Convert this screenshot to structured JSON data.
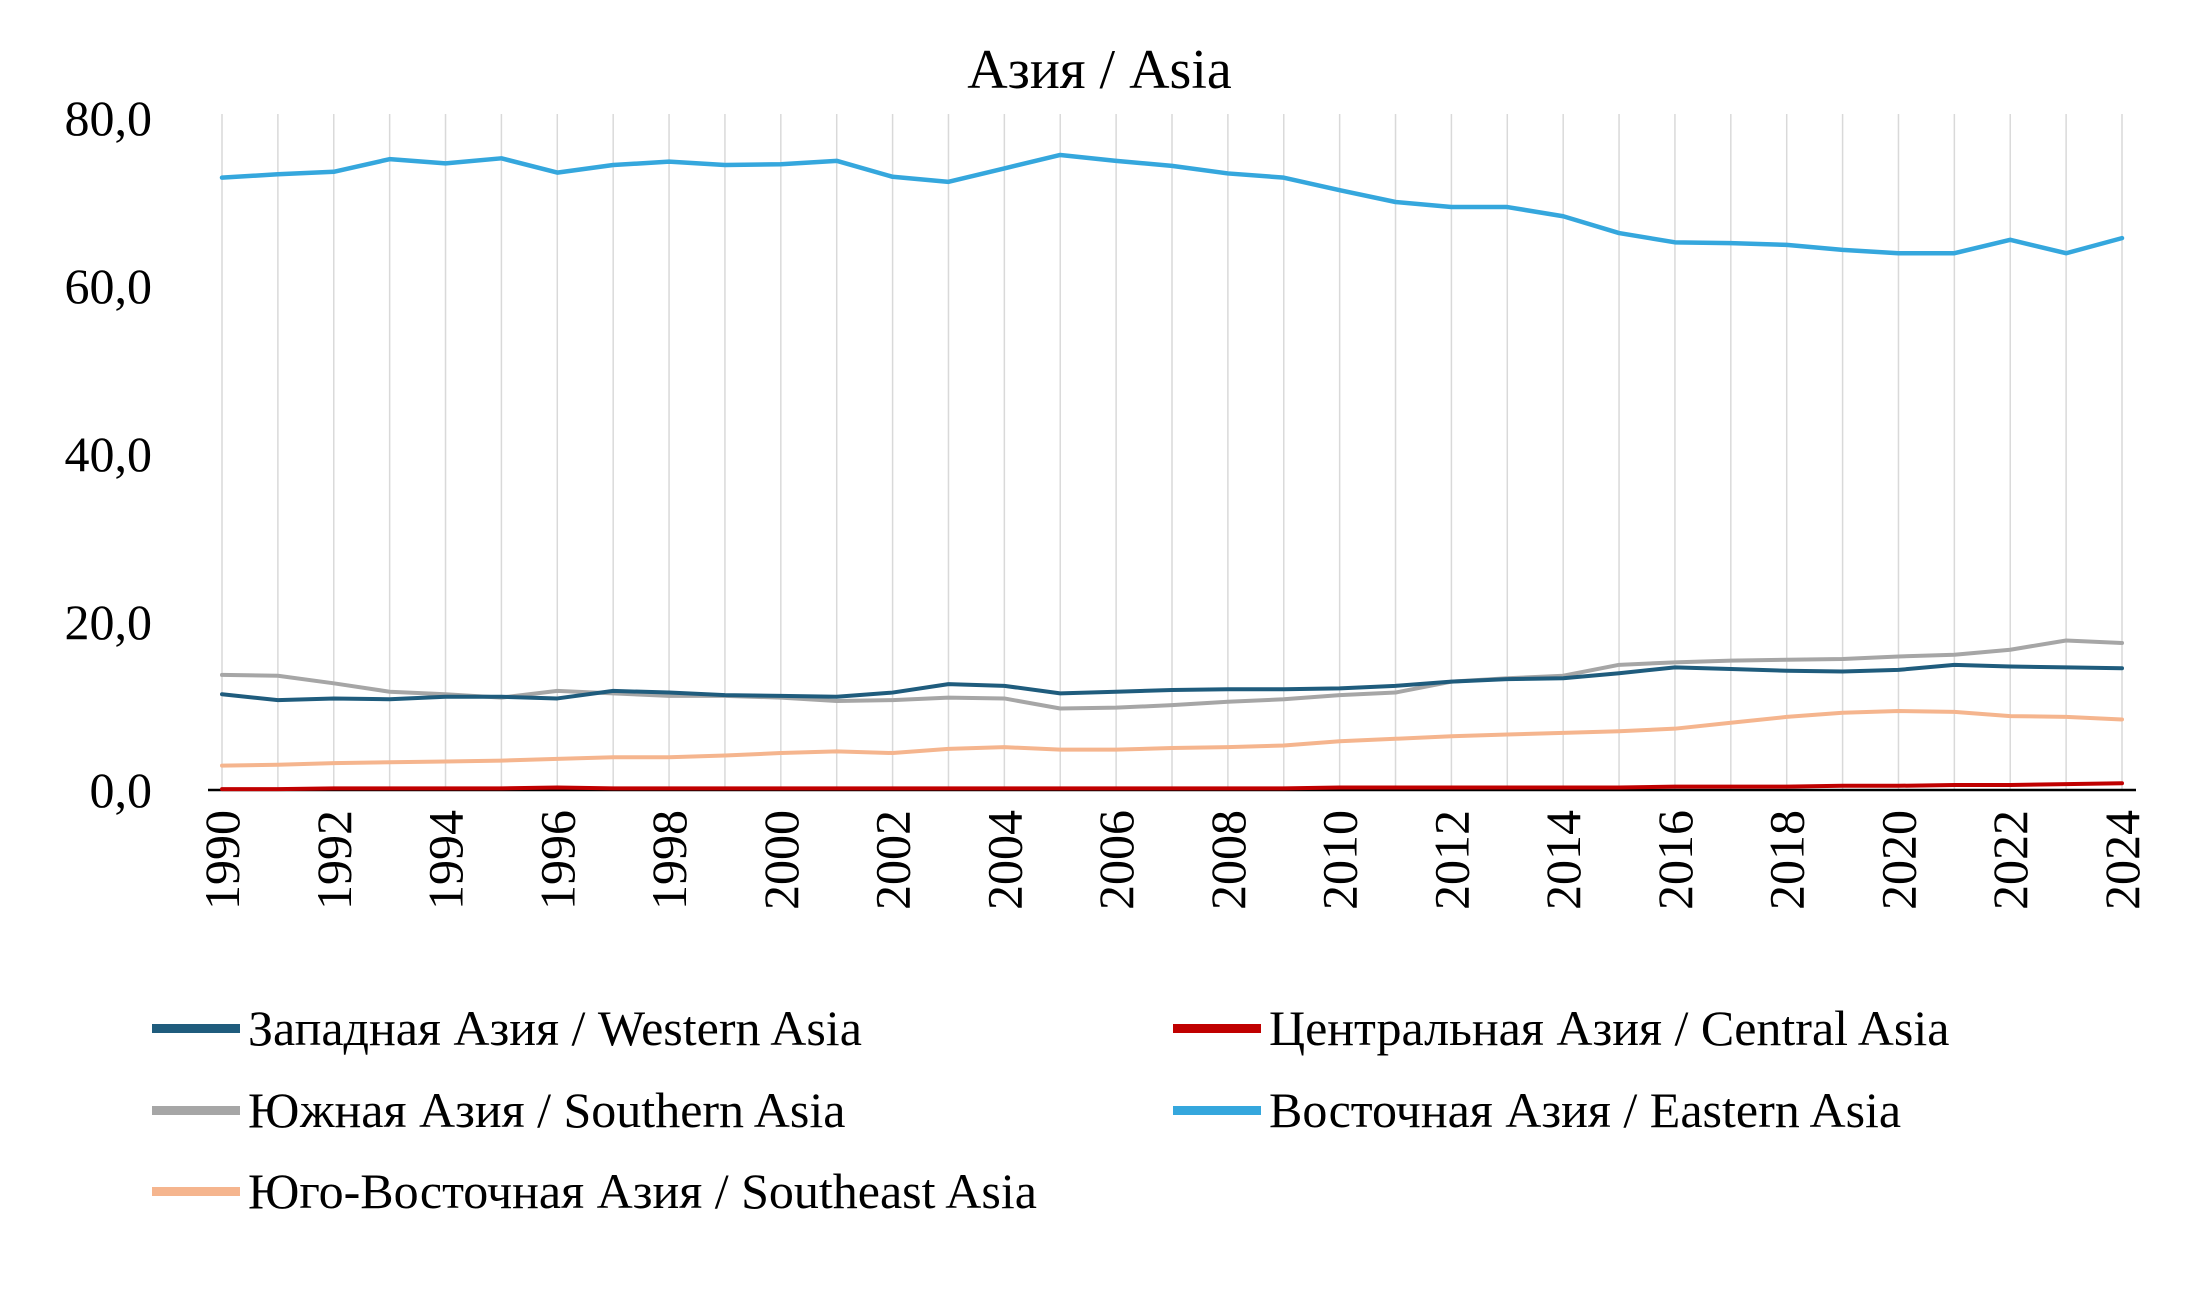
{
  "title": "Азия / Asia",
  "axis": {
    "y_tick_labels": [
      "0,0",
      "20,0",
      "40,0",
      "60,0",
      "80,0"
    ],
    "x_tick_labels": [
      "1990",
      "1992",
      "1994",
      "1996",
      "1998",
      "2000",
      "2002",
      "2004",
      "2006",
      "2008",
      "2010",
      "2012",
      "2014",
      "2016",
      "2018",
      "2020",
      "2022",
      "2024"
    ]
  },
  "colors": {
    "grid": "#d9d9d9",
    "axis_line": "#000000"
  },
  "chart_data": {
    "type": "line",
    "title": "Азия / Asia",
    "xlabel": "",
    "ylabel": "",
    "ylim": [
      0,
      80
    ],
    "grid": "vertical-only",
    "legend_position": "bottom",
    "x": [
      1990,
      1991,
      1992,
      1993,
      1994,
      1995,
      1996,
      1997,
      1998,
      1999,
      2000,
      2001,
      2002,
      2003,
      2004,
      2005,
      2006,
      2007,
      2008,
      2009,
      2010,
      2011,
      2012,
      2013,
      2014,
      2015,
      2016,
      2017,
      2018,
      2019,
      2020,
      2021,
      2022,
      2023,
      2024
    ],
    "series": [
      {
        "name": "Западная Азия / Western Asia",
        "color": "#1f5c7d",
        "values": [
          11.4,
          10.7,
          10.9,
          10.8,
          11.1,
          11.1,
          10.9,
          11.8,
          11.6,
          11.3,
          11.2,
          11.1,
          11.6,
          12.6,
          12.4,
          11.5,
          11.7,
          11.9,
          12.0,
          12.0,
          12.1,
          12.4,
          12.9,
          13.2,
          13.3,
          13.9,
          14.6,
          14.4,
          14.2,
          14.1,
          14.3,
          14.9,
          14.7,
          14.6,
          14.5
        ]
      },
      {
        "name": "Центральная Азия / Central Asia",
        "color": "#c00000",
        "values": [
          0.1,
          0.1,
          0.2,
          0.2,
          0.2,
          0.2,
          0.3,
          0.2,
          0.2,
          0.2,
          0.2,
          0.2,
          0.2,
          0.2,
          0.2,
          0.2,
          0.2,
          0.2,
          0.2,
          0.2,
          0.3,
          0.3,
          0.3,
          0.3,
          0.3,
          0.3,
          0.4,
          0.4,
          0.4,
          0.5,
          0.5,
          0.6,
          0.6,
          0.7,
          0.8
        ]
      },
      {
        "name": "Южная Азия / Southern Asia",
        "color": "#a6a6a6",
        "values": [
          13.7,
          13.6,
          12.7,
          11.7,
          11.4,
          11.0,
          11.8,
          11.5,
          11.2,
          11.2,
          11.0,
          10.6,
          10.7,
          11.0,
          10.9,
          9.7,
          9.8,
          10.1,
          10.5,
          10.8,
          11.3,
          11.6,
          12.9,
          13.3,
          13.6,
          14.9,
          15.2,
          15.4,
          15.5,
          15.6,
          15.9,
          16.1,
          16.7,
          17.8,
          17.5
        ]
      },
      {
        "name": "Восточная Азия / Eastern Asia",
        "color": "#35a7dd",
        "values": [
          72.9,
          73.3,
          73.6,
          75.1,
          74.6,
          75.2,
          73.5,
          74.4,
          74.8,
          74.4,
          74.5,
          74.9,
          73.0,
          72.4,
          74.0,
          75.6,
          74.9,
          74.3,
          73.4,
          72.9,
          71.4,
          70.0,
          69.4,
          69.4,
          68.3,
          66.3,
          65.2,
          65.1,
          64.9,
          64.3,
          63.9,
          63.9,
          65.5,
          63.9,
          65.7
        ]
      },
      {
        "name": "Юго-Восточная Азия / Southeast Asia",
        "color": "#f5b58e",
        "values": [
          2.9,
          3.0,
          3.2,
          3.3,
          3.4,
          3.5,
          3.7,
          3.9,
          3.9,
          4.1,
          4.4,
          4.6,
          4.4,
          4.9,
          5.1,
          4.8,
          4.8,
          5.0,
          5.1,
          5.3,
          5.8,
          6.1,
          6.4,
          6.6,
          6.8,
          7.0,
          7.3,
          8.0,
          8.7,
          9.2,
          9.4,
          9.3,
          8.8,
          8.7,
          8.4
        ]
      }
    ]
  }
}
